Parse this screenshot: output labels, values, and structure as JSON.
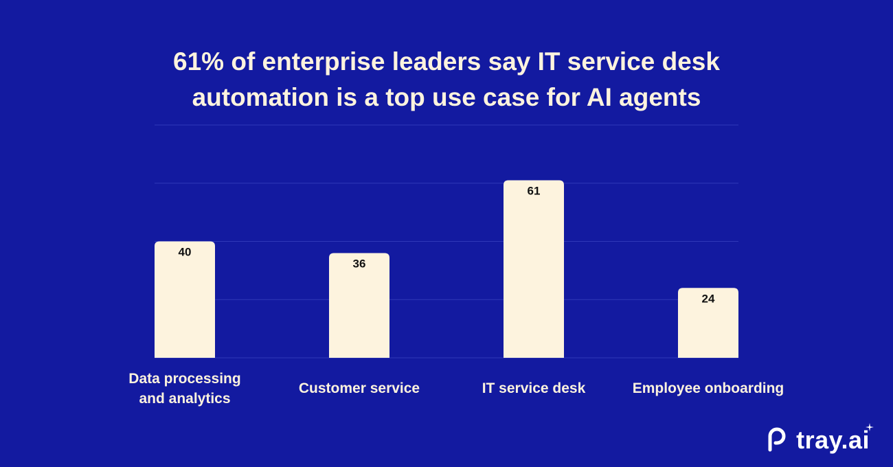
{
  "chart_data": {
    "type": "bar",
    "title_lines": [
      "61% of enterprise leaders say IT service desk",
      "automation is a top use case for AI agents"
    ],
    "categories": [
      [
        "Data processing",
        "and analytics"
      ],
      [
        "Customer service"
      ],
      [
        "IT service desk"
      ],
      [
        "Employee onboarding"
      ]
    ],
    "values": [
      40,
      36,
      61,
      24
    ],
    "ylim": [
      0,
      80
    ],
    "grid_step": 20,
    "grid": true,
    "xlabel": "",
    "ylabel": "",
    "colors": {
      "background": "#131aa0",
      "bar": "#fdf3de",
      "grid": "#2f38b8",
      "label": "#fdf3de",
      "value": "#111111"
    }
  },
  "brand": {
    "name": "tray.ai"
  }
}
